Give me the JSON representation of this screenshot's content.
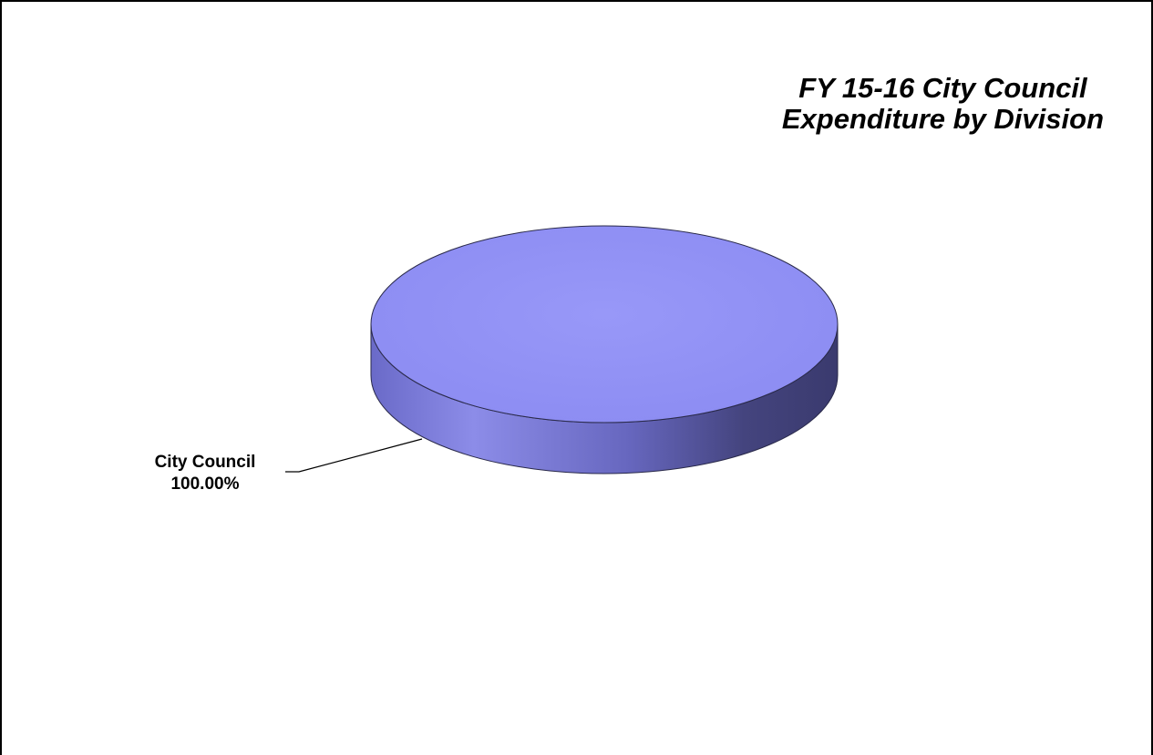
{
  "chart_data": {
    "type": "pie",
    "title_lines": [
      "FY 15-16 City Council",
      "Expenditure by Division"
    ],
    "slices": [
      {
        "label": "City Council",
        "value": 100.0,
        "percent_label": "100.00%"
      }
    ],
    "style": "3d",
    "colors": {
      "slice_top": "#9191f5",
      "slice_side_dark": "#3a3a6e",
      "slice_side_light": "#8c8ce8"
    }
  }
}
